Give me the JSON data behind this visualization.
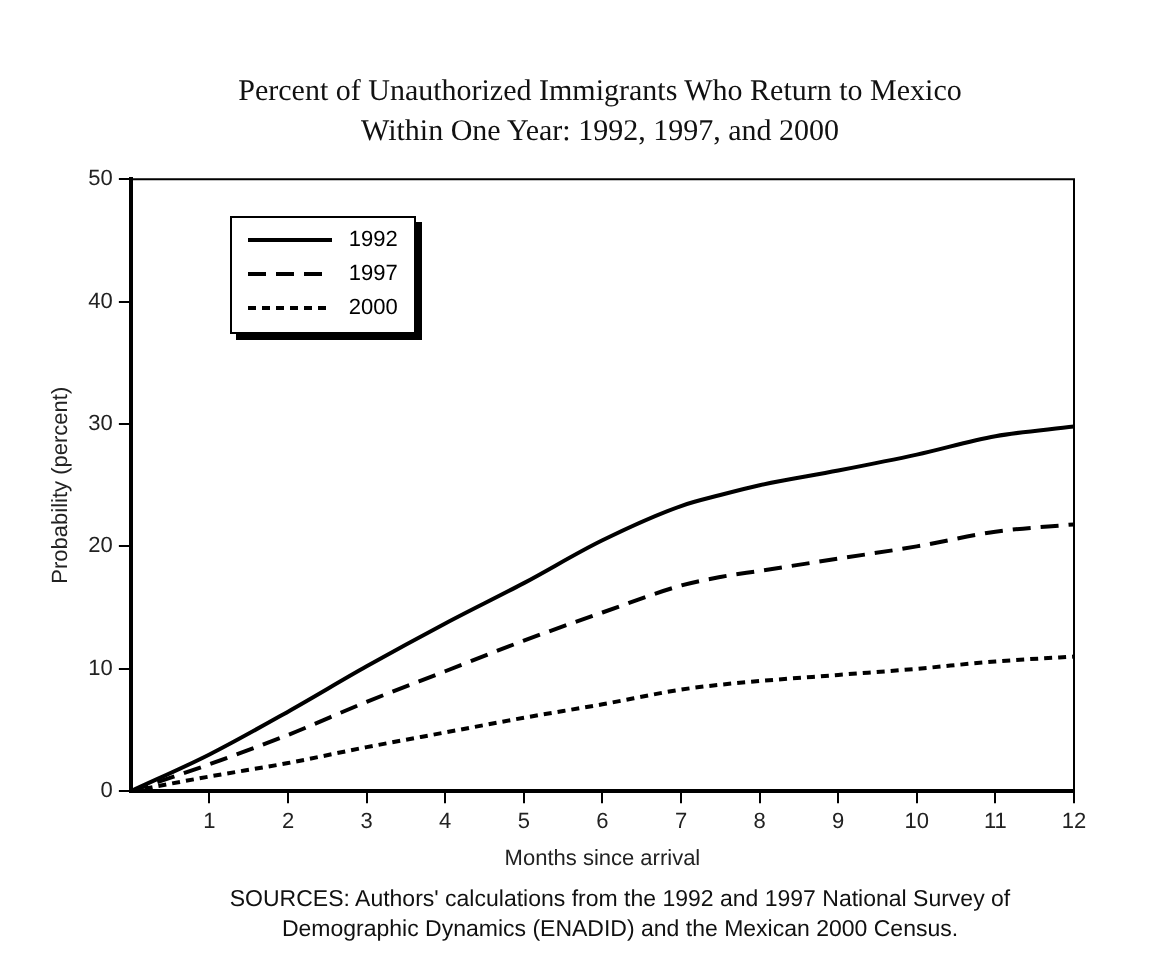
{
  "chart_data": {
    "type": "line",
    "title": "Percent of Unauthorized Immigrants Who Return to Mexico Within One Year:  1992, 1997, and 2000",
    "xlabel": "Months since arrival",
    "ylabel": "Probability (percent)",
    "x": [
      0,
      1,
      2,
      3,
      4,
      5,
      6,
      7,
      7.5,
      8,
      9,
      10,
      11,
      12
    ],
    "series": [
      {
        "name": "1992",
        "color": "#000000",
        "line_style": "solid",
        "values": [
          0,
          3,
          6.5,
          10.2,
          13.7,
          17,
          20.5,
          23.3,
          24.2,
          25,
          26.2,
          27.5,
          29,
          29.8
        ]
      },
      {
        "name": "1997",
        "color": "#000000",
        "line_style": "dashed",
        "values": [
          0,
          2.2,
          4.6,
          7.3,
          9.8,
          12.3,
          14.6,
          16.8,
          17.5,
          18,
          19,
          20,
          21.2,
          21.8
        ]
      },
      {
        "name": "2000",
        "color": "#000000",
        "line_style": "dotted",
        "values": [
          0,
          1.2,
          2.3,
          3.6,
          4.8,
          6,
          7.1,
          8.3,
          8.7,
          9,
          9.5,
          10,
          10.6,
          11
        ]
      }
    ],
    "xlim": [
      0,
      12
    ],
    "xticks": [
      1,
      2,
      3,
      4,
      5,
      6,
      7,
      8,
      9,
      10,
      11,
      12
    ],
    "ylim": [
      0,
      50
    ],
    "yticks": [
      0,
      10,
      20,
      30,
      40,
      50
    ],
    "grid": false,
    "legend": "top left",
    "marker": "none",
    "annotations": [
      "SOURCES:  Authors' calculations from the 1992 and 1997 National Survey of Demographic Dynamics (ENADID) and the Mexican 2000 Census."
    ]
  }
}
